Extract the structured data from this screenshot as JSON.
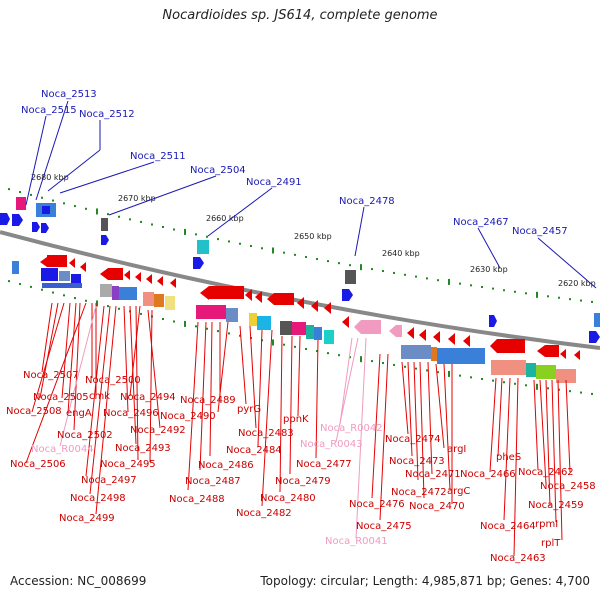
{
  "title": "Nocardioides sp. JS614, complete genome",
  "accession": "Accession: NC_008699",
  "summary": "Topology: circular; Length: 4,985,871 bp; Genes: 4,700",
  "colors": {
    "forward_gene": "#1a1ae6",
    "reverse_gene": "#e60000",
    "rna_gene": "#f09bbf",
    "backbone": "#888888",
    "tick": "#228822",
    "label_forward": "#1a1ab4",
    "label_reverse": "#cc0000",
    "label_rna": "#f09bbf"
  },
  "scale_labels": [
    "2680 kbp",
    "2670 kbp",
    "2660 kbp",
    "2650 kbp",
    "2640 kbp",
    "2630 kbp",
    "2620 kbp"
  ],
  "forward_labels": [
    "Noca_2513",
    "Noca_2515",
    "Noca_2512",
    "Noca_2511",
    "Noca_2504",
    "Noca_2491",
    "Noca_2478",
    "Noca_2467",
    "Noca_2457"
  ],
  "reverse_labels": [
    "Noca_2507",
    "Noca_2500",
    "Noca_2505",
    "cmk",
    "Noca_2508",
    "engA",
    "Noca_2494",
    "Noca_2496",
    "Noca_2502",
    "Noca_2492",
    "Noca_2493",
    "Noca_2506",
    "Noca_2495",
    "Noca_2497",
    "Noca_2498",
    "Noca_2499",
    "Noca_2489",
    "Noca_2490",
    "pyrG",
    "Noca_2483",
    "Noca_2484",
    "Noca_2486",
    "Noca_2487",
    "Noca_2488",
    "ppnK",
    "Noca_2477",
    "Noca_2479",
    "Noca_2480",
    "Noca_2482",
    "Noca_2474",
    "argI",
    "Noca_2473",
    "Noca_2471",
    "Noca_2472",
    "argC",
    "Noca_2470",
    "Noca_2476",
    "Noca_2475",
    "Noca_2466",
    "pheS",
    "Noca_2462",
    "Noca_2458",
    "Noca_2459",
    "Noca_2464",
    "rpmI",
    "rplT",
    "Noca_2463"
  ],
  "rna_labels": [
    "Noca_R0044",
    "Noca_R0042",
    "Noca_R0043",
    "Noca_R0041"
  ]
}
